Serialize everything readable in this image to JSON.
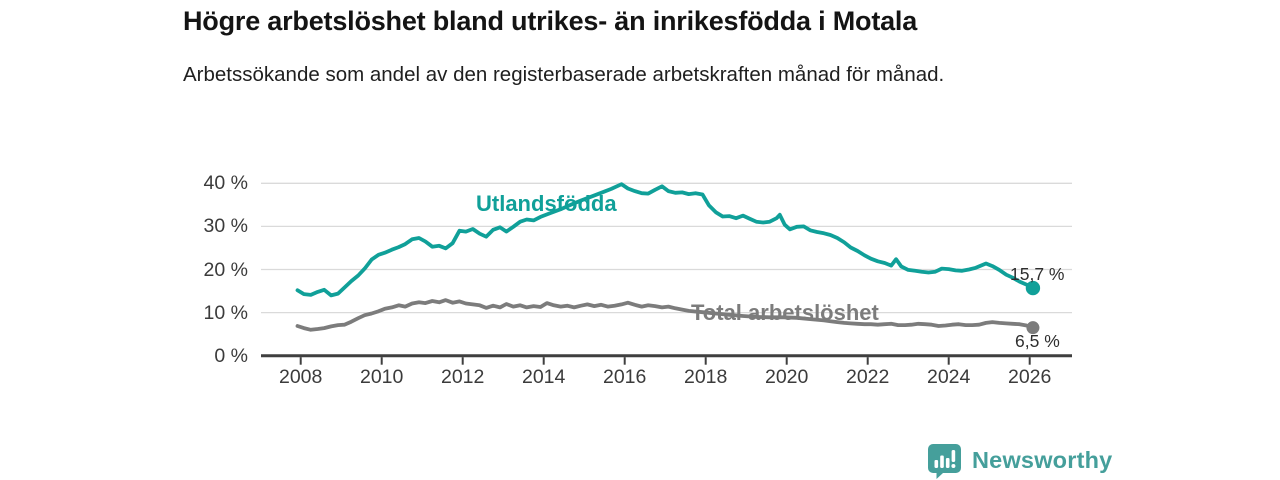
{
  "header": {
    "title": "Högre arbetslöshet bland utrikes- än inrikesfödda i Motala",
    "subtitle": "Arbetssökande som andel av den registerbaserade arbetskraften månad för månad."
  },
  "chart_data": {
    "type": "line",
    "title": "Högre arbetslöshet bland utrikes- än inrikesfödda i Motala",
    "subtitle": "Arbetssökande som andel av den registerbaserade arbetskraften månad för månad.",
    "x_axis": {
      "ticks": [
        2008,
        2010,
        2012,
        2014,
        2016,
        2018,
        2020,
        2022,
        2024,
        2026
      ],
      "range": [
        2007.0,
        2027.0
      ],
      "grid": false
    },
    "y_axis": {
      "ticks": [
        0,
        10,
        20,
        30,
        40
      ],
      "tick_labels": [
        "0 %",
        "10 %",
        "20 %",
        "30 %",
        "40 %"
      ],
      "range": [
        0,
        42
      ],
      "grid": true
    },
    "series": [
      {
        "name": "Utlandsfödda",
        "color": "#10a099",
        "end_label": "15,7 %",
        "end_value": 15.7,
        "points": [
          [
            2007.92,
            15.2
          ],
          [
            2008.08,
            14.3
          ],
          [
            2008.25,
            14.1
          ],
          [
            2008.42,
            14.8
          ],
          [
            2008.58,
            15.3
          ],
          [
            2008.75,
            14.0
          ],
          [
            2008.92,
            14.4
          ],
          [
            2009.08,
            15.8
          ],
          [
            2009.25,
            17.3
          ],
          [
            2009.42,
            18.6
          ],
          [
            2009.58,
            20.2
          ],
          [
            2009.75,
            22.3
          ],
          [
            2009.92,
            23.4
          ],
          [
            2010.08,
            23.9
          ],
          [
            2010.25,
            24.6
          ],
          [
            2010.42,
            25.2
          ],
          [
            2010.58,
            25.9
          ],
          [
            2010.75,
            27.0
          ],
          [
            2010.92,
            27.3
          ],
          [
            2011.08,
            26.5
          ],
          [
            2011.25,
            25.3
          ],
          [
            2011.42,
            25.5
          ],
          [
            2011.58,
            24.9
          ],
          [
            2011.75,
            26.1
          ],
          [
            2011.92,
            29.0
          ],
          [
            2012.08,
            28.8
          ],
          [
            2012.25,
            29.4
          ],
          [
            2012.42,
            28.3
          ],
          [
            2012.58,
            27.6
          ],
          [
            2012.75,
            29.2
          ],
          [
            2012.92,
            29.8
          ],
          [
            2013.08,
            28.8
          ],
          [
            2013.25,
            29.9
          ],
          [
            2013.42,
            31.1
          ],
          [
            2013.58,
            31.6
          ],
          [
            2013.75,
            31.4
          ],
          [
            2013.92,
            32.2
          ],
          [
            2014.17,
            33.1
          ],
          [
            2014.42,
            34.0
          ],
          [
            2014.67,
            35.0
          ],
          [
            2014.92,
            36.0
          ],
          [
            2015.17,
            36.9
          ],
          [
            2015.42,
            37.8
          ],
          [
            2015.67,
            38.7
          ],
          [
            2015.92,
            39.8
          ],
          [
            2016.08,
            38.8
          ],
          [
            2016.25,
            38.2
          ],
          [
            2016.42,
            37.7
          ],
          [
            2016.58,
            37.6
          ],
          [
            2016.75,
            38.5
          ],
          [
            2016.92,
            39.3
          ],
          [
            2017.08,
            38.2
          ],
          [
            2017.25,
            37.8
          ],
          [
            2017.42,
            37.9
          ],
          [
            2017.58,
            37.5
          ],
          [
            2017.75,
            37.7
          ],
          [
            2017.92,
            37.4
          ],
          [
            2018.08,
            34.9
          ],
          [
            2018.25,
            33.3
          ],
          [
            2018.42,
            32.3
          ],
          [
            2018.58,
            32.4
          ],
          [
            2018.75,
            31.9
          ],
          [
            2018.92,
            32.5
          ],
          [
            2019.08,
            31.8
          ],
          [
            2019.25,
            31.1
          ],
          [
            2019.42,
            30.9
          ],
          [
            2019.58,
            31.1
          ],
          [
            2019.75,
            31.9
          ],
          [
            2019.83,
            32.7
          ],
          [
            2019.95,
            30.4
          ],
          [
            2020.08,
            29.3
          ],
          [
            2020.25,
            29.9
          ],
          [
            2020.42,
            30.0
          ],
          [
            2020.58,
            29.1
          ],
          [
            2020.75,
            28.7
          ],
          [
            2020.92,
            28.4
          ],
          [
            2021.08,
            28.0
          ],
          [
            2021.25,
            27.3
          ],
          [
            2021.42,
            26.3
          ],
          [
            2021.58,
            25.1
          ],
          [
            2021.75,
            24.3
          ],
          [
            2021.92,
            23.3
          ],
          [
            2022.08,
            22.5
          ],
          [
            2022.25,
            21.9
          ],
          [
            2022.42,
            21.5
          ],
          [
            2022.58,
            20.9
          ],
          [
            2022.7,
            22.4
          ],
          [
            2022.83,
            20.7
          ],
          [
            2023.0,
            19.9
          ],
          [
            2023.17,
            19.7
          ],
          [
            2023.33,
            19.5
          ],
          [
            2023.5,
            19.3
          ],
          [
            2023.67,
            19.5
          ],
          [
            2023.83,
            20.2
          ],
          [
            2024.0,
            20.1
          ],
          [
            2024.17,
            19.8
          ],
          [
            2024.33,
            19.7
          ],
          [
            2024.5,
            20.0
          ],
          [
            2024.67,
            20.4
          ],
          [
            2024.92,
            21.4
          ],
          [
            2025.08,
            20.8
          ],
          [
            2025.25,
            19.9
          ],
          [
            2025.42,
            18.8
          ],
          [
            2025.58,
            18.1
          ],
          [
            2025.75,
            17.2
          ],
          [
            2025.92,
            16.5
          ],
          [
            2026.08,
            15.7
          ]
        ]
      },
      {
        "name": "Total arbetslöshet",
        "color": "#7c7c7c",
        "end_label": "6,5 %",
        "end_value": 6.5,
        "points": [
          [
            2007.92,
            6.9
          ],
          [
            2008.08,
            6.4
          ],
          [
            2008.25,
            6.0
          ],
          [
            2008.42,
            6.2
          ],
          [
            2008.58,
            6.4
          ],
          [
            2008.75,
            6.8
          ],
          [
            2008.92,
            7.1
          ],
          [
            2009.08,
            7.2
          ],
          [
            2009.25,
            7.9
          ],
          [
            2009.42,
            8.7
          ],
          [
            2009.58,
            9.4
          ],
          [
            2009.75,
            9.8
          ],
          [
            2009.92,
            10.3
          ],
          [
            2010.08,
            10.9
          ],
          [
            2010.25,
            11.2
          ],
          [
            2010.42,
            11.7
          ],
          [
            2010.58,
            11.4
          ],
          [
            2010.75,
            12.1
          ],
          [
            2010.92,
            12.4
          ],
          [
            2011.08,
            12.2
          ],
          [
            2011.25,
            12.7
          ],
          [
            2011.42,
            12.4
          ],
          [
            2011.58,
            12.9
          ],
          [
            2011.75,
            12.3
          ],
          [
            2011.92,
            12.6
          ],
          [
            2012.08,
            12.1
          ],
          [
            2012.25,
            11.9
          ],
          [
            2012.42,
            11.7
          ],
          [
            2012.58,
            11.1
          ],
          [
            2012.75,
            11.6
          ],
          [
            2012.92,
            11.2
          ],
          [
            2013.08,
            12.0
          ],
          [
            2013.25,
            11.4
          ],
          [
            2013.42,
            11.7
          ],
          [
            2013.58,
            11.2
          ],
          [
            2013.75,
            11.5
          ],
          [
            2013.92,
            11.3
          ],
          [
            2014.08,
            12.2
          ],
          [
            2014.25,
            11.7
          ],
          [
            2014.42,
            11.4
          ],
          [
            2014.58,
            11.6
          ],
          [
            2014.75,
            11.2
          ],
          [
            2014.92,
            11.6
          ],
          [
            2015.08,
            11.9
          ],
          [
            2015.25,
            11.5
          ],
          [
            2015.42,
            11.8
          ],
          [
            2015.58,
            11.4
          ],
          [
            2015.75,
            11.6
          ],
          [
            2015.92,
            11.9
          ],
          [
            2016.08,
            12.3
          ],
          [
            2016.25,
            11.8
          ],
          [
            2016.42,
            11.4
          ],
          [
            2016.58,
            11.7
          ],
          [
            2016.75,
            11.5
          ],
          [
            2016.92,
            11.2
          ],
          [
            2017.08,
            11.4
          ],
          [
            2017.25,
            11.0
          ],
          [
            2017.42,
            10.7
          ],
          [
            2017.58,
            10.4
          ],
          [
            2017.92,
            10.1
          ],
          [
            2018.25,
            9.8
          ],
          [
            2018.58,
            9.5
          ],
          [
            2018.92,
            9.2
          ],
          [
            2019.25,
            9.0
          ],
          [
            2019.58,
            8.9
          ],
          [
            2019.92,
            8.9
          ],
          [
            2020.25,
            8.8
          ],
          [
            2020.58,
            8.5
          ],
          [
            2020.92,
            8.2
          ],
          [
            2021.08,
            8.0
          ],
          [
            2021.25,
            7.8
          ],
          [
            2021.42,
            7.6
          ],
          [
            2021.58,
            7.5
          ],
          [
            2021.75,
            7.4
          ],
          [
            2021.92,
            7.3
          ],
          [
            2022.08,
            7.3
          ],
          [
            2022.25,
            7.2
          ],
          [
            2022.42,
            7.3
          ],
          [
            2022.58,
            7.4
          ],
          [
            2022.75,
            7.1
          ],
          [
            2022.92,
            7.1
          ],
          [
            2023.08,
            7.2
          ],
          [
            2023.25,
            7.4
          ],
          [
            2023.42,
            7.3
          ],
          [
            2023.58,
            7.2
          ],
          [
            2023.75,
            6.9
          ],
          [
            2023.92,
            7.0
          ],
          [
            2024.08,
            7.2
          ],
          [
            2024.25,
            7.3
          ],
          [
            2024.42,
            7.1
          ],
          [
            2024.58,
            7.1
          ],
          [
            2024.75,
            7.2
          ],
          [
            2024.92,
            7.6
          ],
          [
            2025.08,
            7.8
          ],
          [
            2025.25,
            7.6
          ],
          [
            2025.42,
            7.5
          ],
          [
            2025.58,
            7.4
          ],
          [
            2025.75,
            7.3
          ],
          [
            2025.92,
            7.0
          ],
          [
            2026.08,
            6.5
          ]
        ]
      }
    ],
    "legend_position": "inline-labels",
    "colors": {
      "grid": "#dadada",
      "axis": "#3f3f3f",
      "tick_text": "#3b3b3b",
      "value_text": "#2e2e2e"
    }
  },
  "footer": {
    "brand": "Newsworthy",
    "logo_color": "#459f9b",
    "logo_icon": "bar-chart-speech-bubble"
  }
}
